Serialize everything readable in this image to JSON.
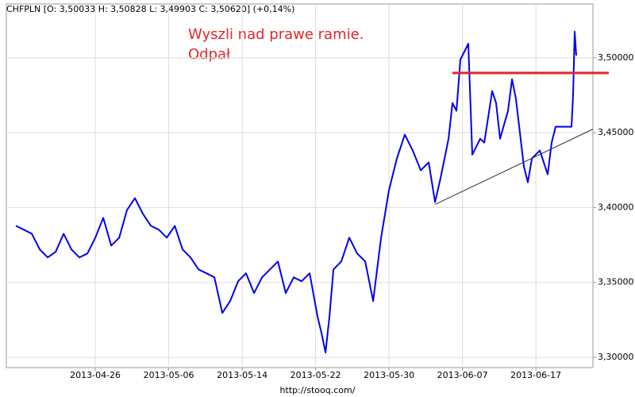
{
  "chart_data": {
    "type": "line",
    "title": "CHFPLN [O: 3,50033  H: 3,50828  L: 3,49903  C: 3,50620] (+0,14%)",
    "annotation": [
      "Wyszli nad prawe ramie.",
      "Odpał"
    ],
    "source": "http://stooq.com/",
    "grid": true,
    "xlim": [
      -7.27,
      40.66
    ],
    "ylim": [
      3.2931,
      3.536
    ],
    "xticks": [
      {
        "value": 0,
        "label": "2013-04-26"
      },
      {
        "value": 6,
        "label": "2013-05-06"
      },
      {
        "value": 12,
        "label": "2013-05-14"
      },
      {
        "value": 18,
        "label": "2013-05-22"
      },
      {
        "value": 24,
        "label": "2013-05-30"
      },
      {
        "value": 30,
        "label": "2013-06-07"
      },
      {
        "value": 36,
        "label": "2013-06-17"
      }
    ],
    "yticks": [
      {
        "value": 3.3,
        "label": "3,30000"
      },
      {
        "value": 3.35,
        "label": "3,35000"
      },
      {
        "value": 3.4,
        "label": "3,40000"
      },
      {
        "value": 3.45,
        "label": "3,45000"
      },
      {
        "value": 3.5,
        "label": "3,50000"
      }
    ],
    "hline": {
      "value": 3.4899,
      "x": [
        29.18,
        41.95
      ],
      "color": "#e0262b"
    },
    "trendline": {
      "x": [
        27.76,
        40.66
      ],
      "values": [
        3.4021,
        3.4524
      ],
      "color": "#333333"
    },
    "series": [
      {
        "name": "CHFPLN",
        "color": "#0000ee",
        "x": [
          -6.49,
          -5.84,
          -5.19,
          -4.54,
          -3.89,
          -3.24,
          -2.59,
          -1.95,
          -1.3,
          -0.65,
          0,
          0.65,
          1.3,
          1.95,
          2.59,
          3.24,
          3.89,
          4.54,
          5.19,
          5.84,
          6.49,
          7.13,
          7.78,
          8.43,
          9.08,
          9.73,
          10.38,
          11.02,
          11.67,
          12.32,
          12.97,
          13.62,
          14.27,
          14.92,
          15.56,
          16.21,
          16.86,
          17.51,
          18.16,
          18.48,
          18.81,
          19.13,
          19.46,
          20.1,
          20.75,
          21.4,
          22.05,
          22.7,
          23.35,
          23.99,
          24.64,
          25.29,
          25.94,
          26.59,
          27.24,
          27.76,
          28.21,
          28.86,
          29.18,
          29.51,
          29.83,
          30.16,
          30.48,
          30.8,
          31.13,
          31.45,
          31.78,
          32.43,
          32.75,
          33.07,
          33.72,
          34.05,
          34.37,
          35.02,
          35.34,
          35.67,
          36.32,
          36.96,
          37.29,
          37.61,
          38.26,
          38.91,
          39.04,
          39.17,
          39.3
        ],
        "values": [
          3.3878,
          3.3852,
          3.3825,
          3.372,
          3.3667,
          3.3704,
          3.3825,
          3.372,
          3.3667,
          3.3693,
          3.3799,
          3.3931,
          3.3746,
          3.3799,
          3.3984,
          3.4063,
          3.3958,
          3.3878,
          3.3852,
          3.3799,
          3.3878,
          3.372,
          3.3667,
          3.3587,
          3.3561,
          3.3534,
          3.3296,
          3.3376,
          3.3508,
          3.3561,
          3.3429,
          3.3534,
          3.3587,
          3.364,
          3.3429,
          3.3534,
          3.3508,
          3.3561,
          3.327,
          3.3164,
          3.3032,
          3.327,
          3.3587,
          3.364,
          3.3799,
          3.3693,
          3.364,
          3.3376,
          3.3799,
          3.4116,
          3.4328,
          3.4487,
          3.4381,
          3.4249,
          3.4302,
          3.4037,
          3.4196,
          3.446,
          3.4698,
          3.4646,
          3.4989,
          3.5042,
          3.5095,
          3.4354,
          3.4407,
          3.446,
          3.4434,
          3.4778,
          3.4698,
          3.446,
          3.4646,
          3.4857,
          3.4725,
          3.4275,
          3.4169,
          3.4328,
          3.4381,
          3.4222,
          3.4434,
          3.454,
          3.454,
          3.454,
          3.4751,
          3.5175,
          3.5016
        ]
      }
    ]
  }
}
